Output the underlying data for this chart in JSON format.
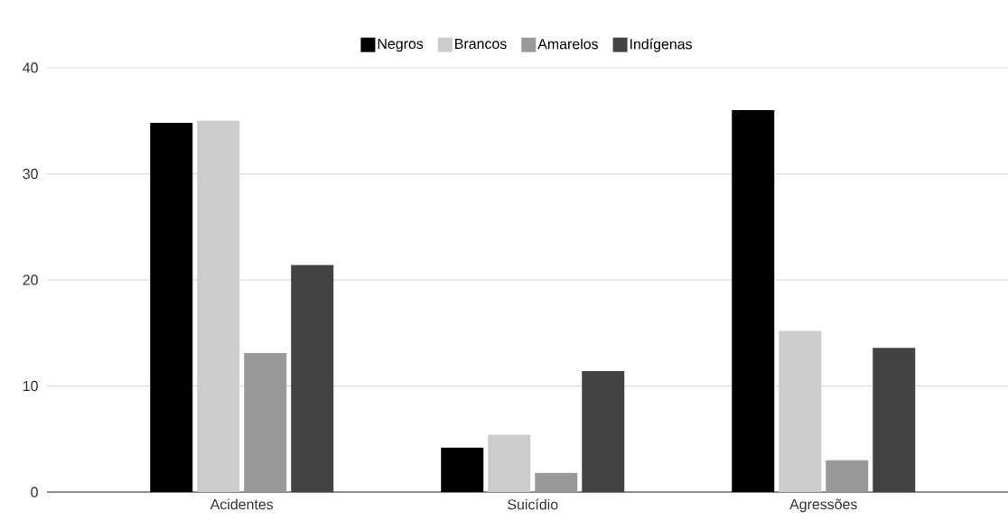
{
  "chart_data": {
    "type": "bar",
    "categories": [
      "Acidentes",
      "Suicídio",
      "Agressões"
    ],
    "series": [
      {
        "name": "Negros",
        "color": "#000000",
        "values": [
          34.8,
          4.2,
          36.0
        ]
      },
      {
        "name": "Brancos",
        "color": "#cccccc",
        "values": [
          35.0,
          5.4,
          15.2
        ]
      },
      {
        "name": "Amarelos",
        "color": "#999999",
        "values": [
          13.1,
          1.8,
          3.0
        ]
      },
      {
        "name": "Indígenas",
        "color": "#434343",
        "values": [
          21.4,
          11.4,
          13.6
        ]
      }
    ],
    "ylim": [
      0,
      40
    ],
    "yticks": [
      0,
      10,
      20,
      30,
      40
    ],
    "grid": "y",
    "legend": "top"
  }
}
